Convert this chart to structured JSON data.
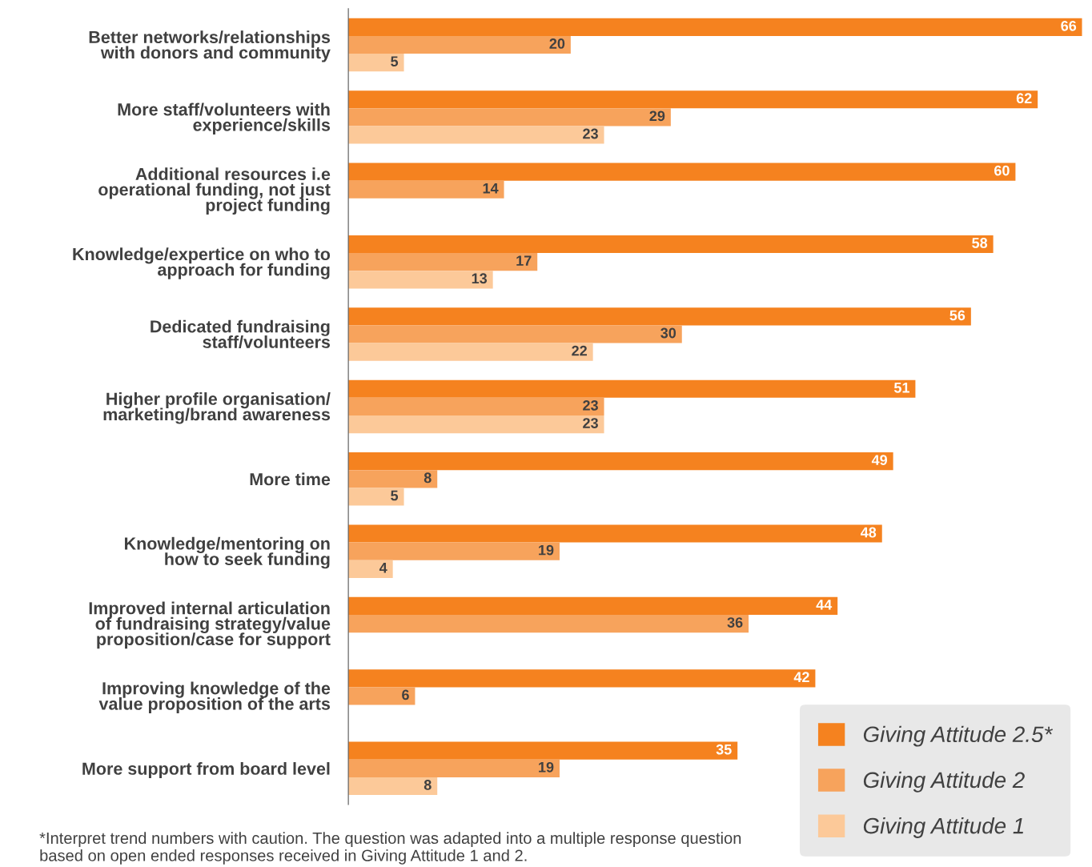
{
  "chart_data": {
    "type": "bar",
    "orientation": "horizontal",
    "categories": [
      "Better networks/relationships\nwith donors and community",
      "More staff/volunteers with\nexperience/skills",
      "Additional resources i.e\noperational funding, not just\nproject funding",
      "Knowledge/expertice on who to\napproach for funding",
      "Dedicated fundraising\nstaff/volunteers",
      "Higher profile organisation/\nmarketing/brand awareness",
      "More time",
      "Knowledge/mentoring on\nhow to seek funding",
      "Improved internal articulation\nof fundraising strategy/value\nproposition/case for support",
      "Improving knowledge of the\nvalue proposition of the arts",
      "More support from board level"
    ],
    "series": [
      {
        "name": "Giving Attitude 2.5*",
        "color": "#f5821f",
        "values": [
          66,
          62,
          60,
          58,
          56,
          51,
          49,
          48,
          44,
          42,
          35
        ]
      },
      {
        "name": "Giving Attitude 2",
        "color": "#f7a35c",
        "values": [
          20,
          29,
          14,
          17,
          30,
          23,
          8,
          19,
          36,
          6,
          19
        ]
      },
      {
        "name": "Giving Attitude 1",
        "color": "#fcc999",
        "values": [
          5,
          23,
          null,
          13,
          22,
          23,
          5,
          4,
          null,
          null,
          8
        ]
      }
    ],
    "data_labels": true,
    "legend": "bottom right",
    "grid": false,
    "tick_labels": "y",
    "annotations": [
      "*Interpret trend numbers with caution. The question was adapted into a multiple response question\nbased on open ended responses received in Giving Attitude 1 and 2."
    ]
  }
}
